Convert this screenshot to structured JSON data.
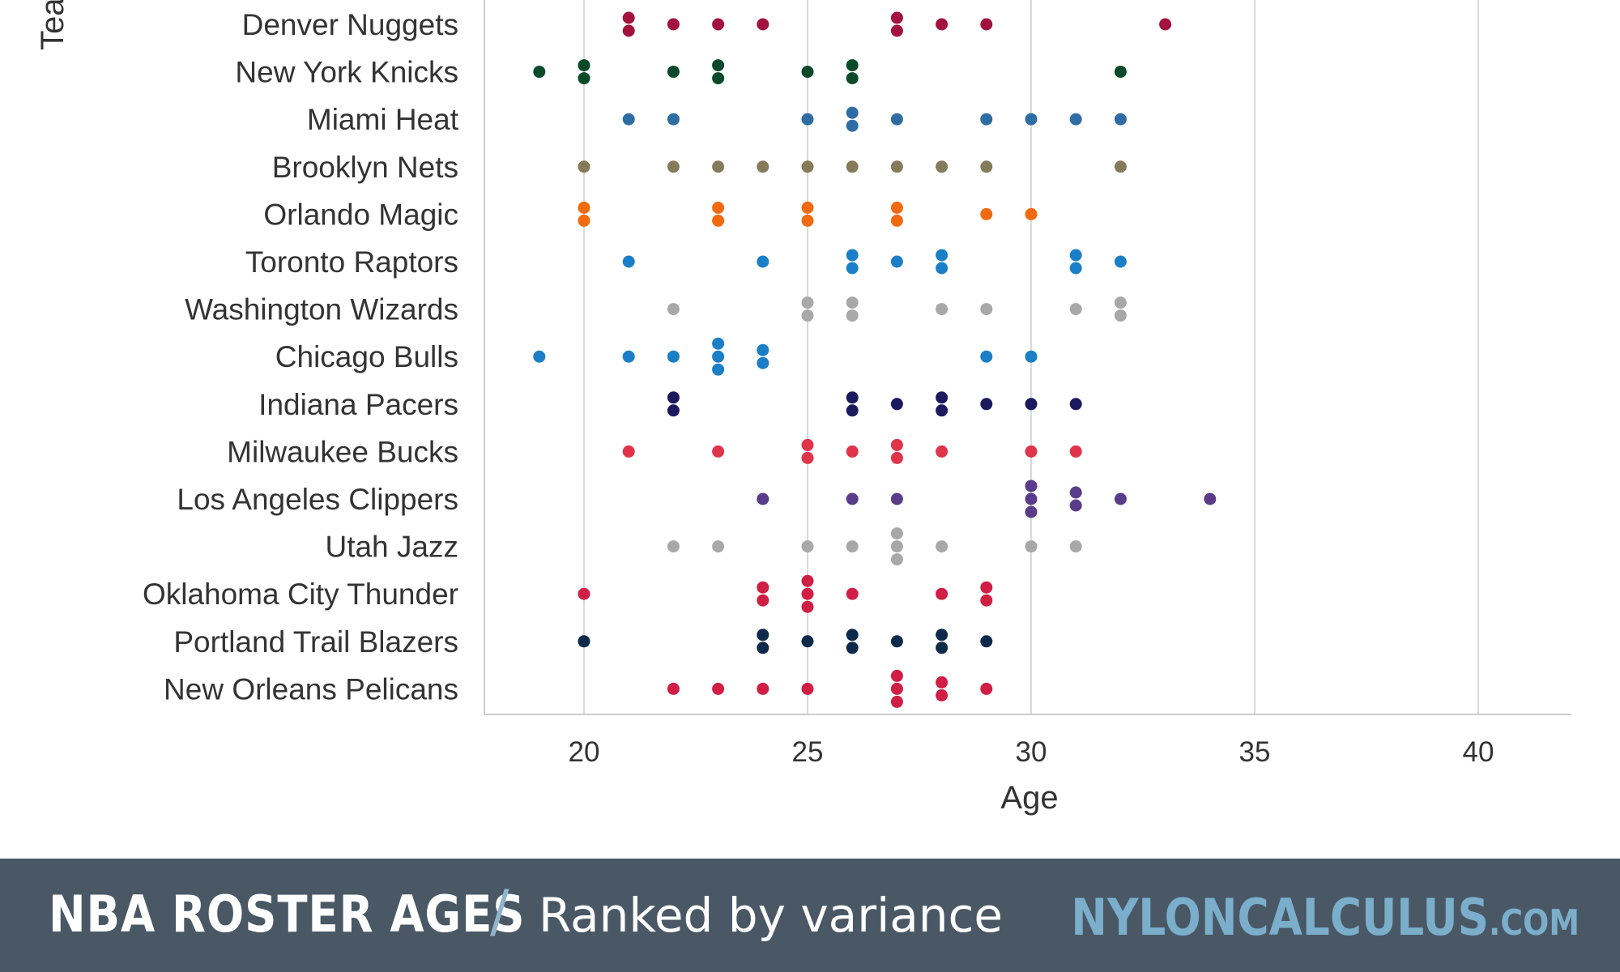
{
  "chart_data": {
    "type": "scatter",
    "title": "NBA ROSTER AGES",
    "subtitle": "Ranked by variance",
    "xlabel": "Age",
    "ylabel": "Tea",
    "xlim": [
      17.5,
      42
    ],
    "xticks": [
      20,
      25,
      30,
      35,
      40
    ],
    "grid": "vertical",
    "categories": [
      "Denver Nuggets",
      "New York Knicks",
      "Miami Heat",
      "Brooklyn Nets",
      "Orlando Magic",
      "Toronto Raptors",
      "Washington Wizards",
      "Chicago Bulls",
      "Indiana Pacers",
      "Milwaukee Bucks",
      "Los Angeles Clippers",
      "Utah Jazz",
      "Oklahoma City Thunder",
      "Portland Trail Blazers",
      "New Orleans Pelicans"
    ],
    "series": [
      {
        "team": "Denver Nuggets",
        "color": "#a3113f",
        "ages": [
          21,
          21,
          22,
          23,
          24,
          27,
          27,
          28,
          29,
          33
        ]
      },
      {
        "team": "New York Knicks",
        "color": "#0a4a2a",
        "ages": [
          19,
          20,
          20,
          22,
          23,
          23,
          25,
          26,
          26,
          32
        ]
      },
      {
        "team": "Miami Heat",
        "color": "#2e6da4",
        "ages": [
          21,
          22,
          25,
          26,
          26,
          27,
          29,
          30,
          31,
          32
        ]
      },
      {
        "team": "Brooklyn Nets",
        "color": "#857a5a",
        "ages": [
          20,
          22,
          23,
          24,
          25,
          26,
          27,
          28,
          29,
          32
        ]
      },
      {
        "team": "Orlando Magic",
        "color": "#f26a10",
        "ages": [
          20,
          20,
          23,
          23,
          25,
          25,
          27,
          27,
          29,
          30
        ]
      },
      {
        "team": "Toronto Raptors",
        "color": "#1a7fc7",
        "ages": [
          21,
          24,
          26,
          26,
          27,
          28,
          28,
          31,
          31,
          32
        ]
      },
      {
        "team": "Washington Wizards",
        "color": "#a8a8a8",
        "ages": [
          22,
          25,
          25,
          26,
          26,
          28,
          29,
          31,
          32,
          32
        ]
      },
      {
        "team": "Chicago Bulls",
        "color": "#1a7fc7",
        "ages": [
          19,
          21,
          22,
          23,
          23,
          23,
          24,
          24,
          29,
          30
        ]
      },
      {
        "team": "Indiana Pacers",
        "color": "#1c1a5e",
        "ages": [
          22,
          22,
          26,
          26,
          27,
          28,
          28,
          29,
          30,
          31
        ]
      },
      {
        "team": "Milwaukee Bucks",
        "color": "#e0344a",
        "ages": [
          21,
          23,
          25,
          25,
          26,
          27,
          27,
          28,
          30,
          31
        ]
      },
      {
        "team": "Los Angeles Clippers",
        "color": "#5a3c8a",
        "ages": [
          24,
          26,
          27,
          30,
          30,
          30,
          31,
          31,
          32,
          34
        ]
      },
      {
        "team": "Utah Jazz",
        "color": "#a8a8a8",
        "ages": [
          22,
          23,
          25,
          26,
          27,
          27,
          27,
          28,
          30,
          31
        ]
      },
      {
        "team": "Oklahoma City Thunder",
        "color": "#d01e45",
        "ages": [
          20,
          24,
          24,
          25,
          25,
          25,
          26,
          28,
          29,
          29
        ]
      },
      {
        "team": "Portland Trail Blazers",
        "color": "#0d2a4a",
        "ages": [
          20,
          24,
          24,
          25,
          26,
          26,
          27,
          28,
          28,
          29
        ]
      },
      {
        "team": "New Orleans Pelicans",
        "color": "#d01e45",
        "ages": [
          22,
          23,
          24,
          25,
          27,
          27,
          27,
          28,
          28,
          29
        ]
      }
    ]
  },
  "footer": {
    "title": "NBA ROSTER AGES",
    "separator": "/",
    "subtitle": "Ranked by variance",
    "brand": "NYLONCALCULUS",
    "brand_suffix": ".COM"
  },
  "colors": {
    "footer_background": "#4a5866",
    "brand_accent": "#7aaecb",
    "gridline": "#d9d9d9",
    "axis_line": "#cccccc"
  }
}
